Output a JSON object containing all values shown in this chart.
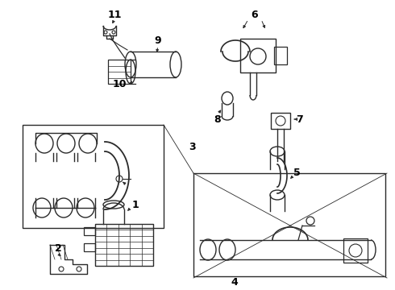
{
  "bg_color": "#ffffff",
  "line_color": "#2a2a2a",
  "text_color": "#000000",
  "fig_width": 4.9,
  "fig_height": 3.6,
  "dpi": 100,
  "xlim": [
    0,
    490
  ],
  "ylim": [
    0,
    360
  ]
}
